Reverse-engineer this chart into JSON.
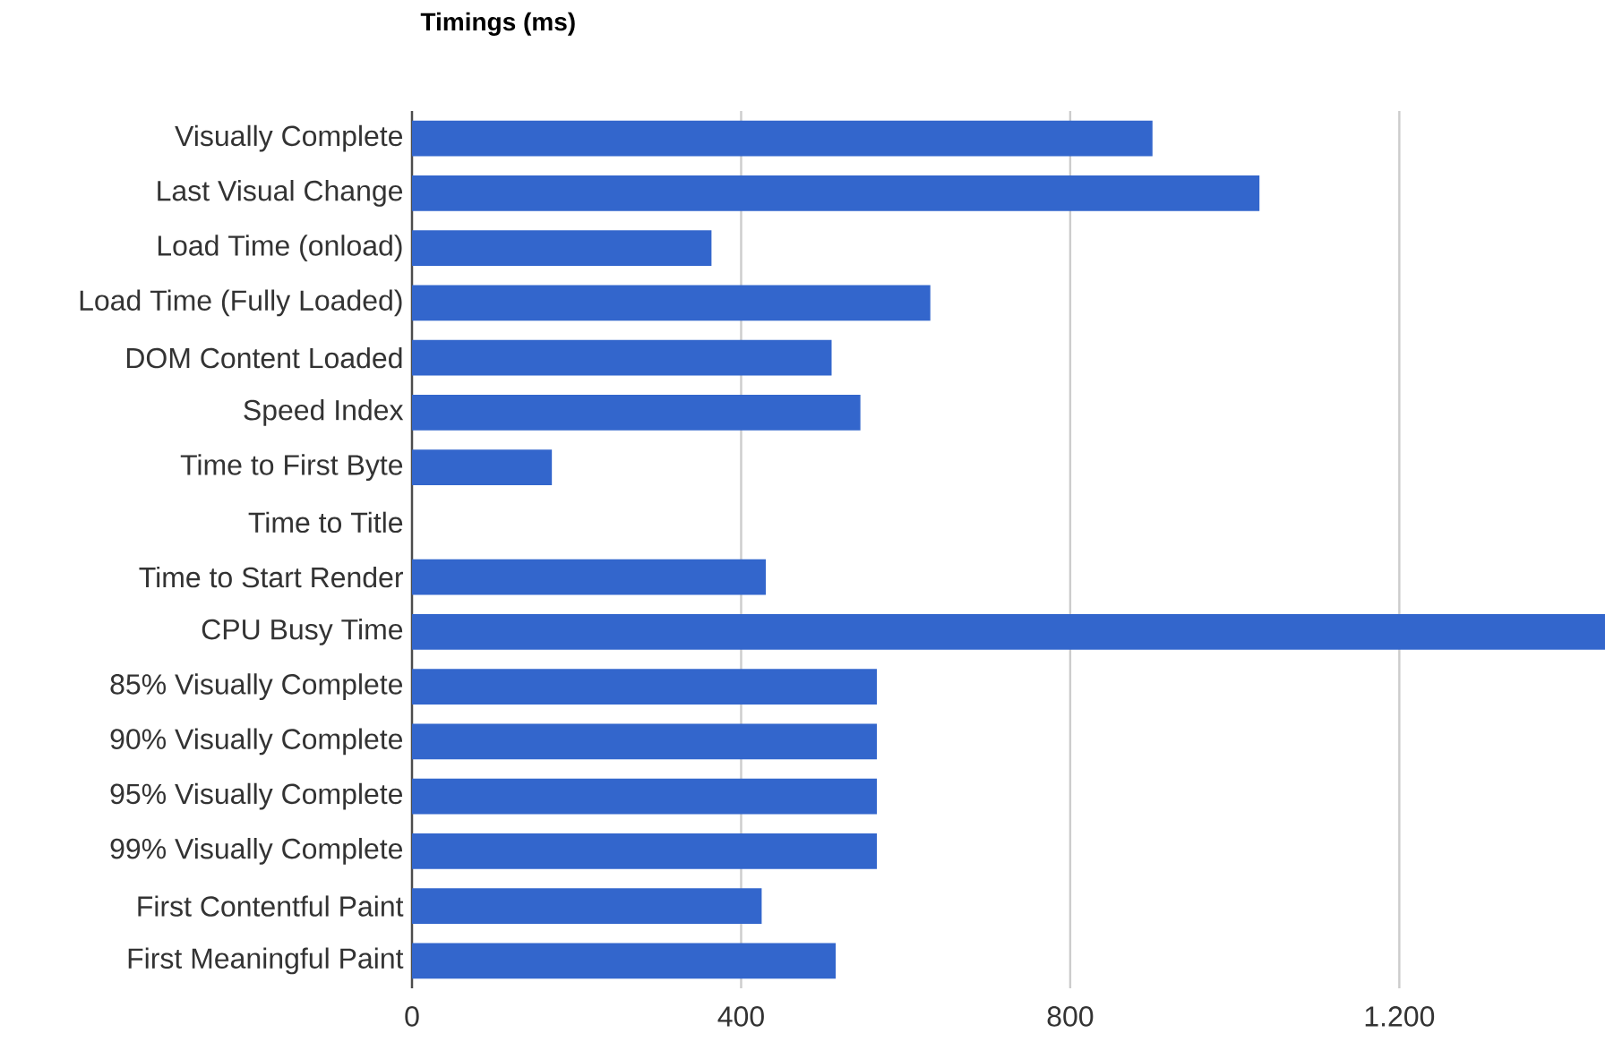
{
  "chart_data": {
    "type": "bar",
    "orientation": "horizontal",
    "title": "Timings (ms)",
    "categories": [
      "Visually Complete",
      "Last Visual Change",
      "Load Time (onload)",
      "Load Time (Fully Loaded)",
      "DOM Content Loaded",
      "Speed Index",
      "Time to First Byte",
      "Time to Title",
      "Time to Start Render",
      "CPU Busy Time",
      "85% Visually Complete",
      "90% Visually Complete",
      "95% Visually Complete",
      "99% Visually Complete",
      "First Contentful Paint",
      "First Meaningful Paint"
    ],
    "values": [
      900,
      1030,
      364,
      630,
      510,
      545,
      170,
      null,
      430,
      1450,
      565,
      565,
      565,
      565,
      425,
      515
    ],
    "color": "#3366cc",
    "xlim": [
      0,
      1450
    ],
    "xticks": [
      0,
      400,
      800,
      {
        "value": 1200,
        "label": "1.200"
      }
    ],
    "grid": "x"
  }
}
